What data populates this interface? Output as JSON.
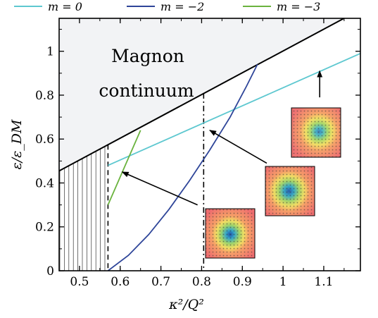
{
  "chart_data": {
    "type": "line",
    "xlabel": "κ²/Q²",
    "ylabel": "ε/ε_DM",
    "xlim": [
      0.45,
      1.19
    ],
    "ylim": [
      0,
      1.15
    ],
    "xticks": [
      0.5,
      0.6,
      0.7,
      0.8,
      0.9,
      1,
      1.1
    ],
    "xtick_labels": [
      "0.5",
      "0.6",
      "0.7",
      "0.8",
      "0.9",
      "1",
      "1.1"
    ],
    "yticks": [
      0,
      0.2,
      0.4,
      0.6,
      0.8,
      1
    ],
    "ytick_labels": [
      "0",
      "0.2",
      "0.4",
      "0.6",
      "0.8",
      "1"
    ],
    "grid": false,
    "legend_position": "top, outside",
    "series": [
      {
        "name": "m = 0",
        "color": "#5ec8d0",
        "x": [
          0.57,
          1.19
        ],
        "y": [
          0.48,
          0.99
        ]
      },
      {
        "name": "m = −2",
        "color": "#2e4599",
        "x": [
          0.57,
          0.62,
          0.67,
          0.72,
          0.77,
          0.82,
          0.87,
          0.91,
          0.937
        ],
        "y": [
          0.0,
          0.07,
          0.165,
          0.28,
          0.41,
          0.55,
          0.7,
          0.84,
          0.94
        ]
      },
      {
        "name": "m = −3",
        "color": "#6ab33e",
        "x": [
          0.57,
          0.65
        ],
        "y": [
          0.3,
          0.64
        ]
      }
    ],
    "continuum_boundary": {
      "x": [
        0.45,
        1.19
      ],
      "y": [
        0.455,
        1.19
      ]
    },
    "region_label": [
      "Magnon",
      "continuum"
    ],
    "vertical_markers": [
      {
        "x": 0.57,
        "style": "dashed"
      },
      {
        "x": 0.805,
        "style": "dash-dot"
      }
    ],
    "hatched_region": {
      "x": [
        0.45,
        0.57
      ]
    },
    "insets": [
      {
        "series": "m = −3",
        "arrow_from": [
          0.79,
          0.3
        ],
        "arrow_to": [
          0.605,
          0.45
        ]
      },
      {
        "series": "m = −2",
        "arrow_from": [
          0.96,
          0.49
        ],
        "arrow_to": [
          0.82,
          0.64
        ]
      },
      {
        "series": "m = 0",
        "arrow_from": [
          1.09,
          0.79
        ],
        "arrow_to": [
          1.09,
          0.91
        ]
      }
    ]
  }
}
